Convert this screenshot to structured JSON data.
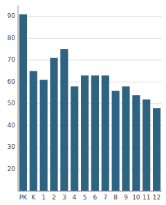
{
  "chart_data": {
    "type": "bar",
    "categories": [
      "PK",
      "K",
      "1",
      "2",
      "3",
      "4",
      "5",
      "6",
      "7",
      "8",
      "9",
      "10",
      "11",
      "12"
    ],
    "values": [
      91,
      65,
      61,
      71,
      75,
      58,
      63,
      63,
      63,
      56,
      58,
      54,
      52,
      48
    ],
    "color": "#2e6382",
    "ylim": [
      10,
      95
    ],
    "yticks": [
      20,
      30,
      40,
      50,
      60,
      70,
      80,
      90
    ],
    "grid": true
  }
}
